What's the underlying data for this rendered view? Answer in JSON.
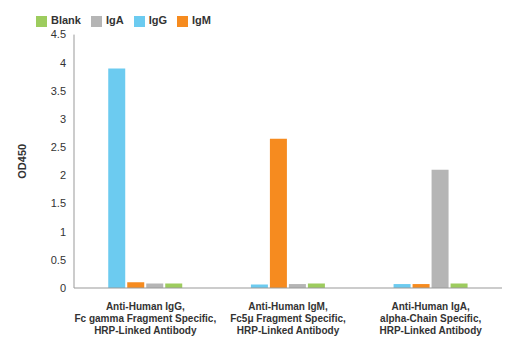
{
  "chart_data": {
    "type": "bar",
    "categories": [
      "Anti-Human IgG,\nFc gamma Fragment Specific,\nHRP-Linked Antibody",
      "Anti-Human IgM,\nFc5μ Fragment Specific,\nHRP-Linked Antibody",
      "Anti-Human IgA,\nalpha-Chain Specific,\nHRP-Linked Antibody"
    ],
    "series": [
      {
        "name": "IgG",
        "color": "#6ccbf0",
        "values": [
          3.9,
          0.06,
          0.07
        ]
      },
      {
        "name": "IgM",
        "color": "#f68b1f",
        "values": [
          0.1,
          2.65,
          0.07
        ]
      },
      {
        "name": "IgA",
        "color": "#b5b5b5",
        "values": [
          0.08,
          0.07,
          2.1
        ]
      },
      {
        "name": "Blank",
        "color": "#9dcc5e",
        "values": [
          0.08,
          0.08,
          0.08
        ]
      }
    ],
    "y_label": "OD450",
    "ylim": [
      0,
      4.5
    ],
    "yticks": [
      0,
      0.5,
      1,
      1.5,
      2,
      2.5,
      3,
      3.5,
      4,
      4.5
    ],
    "grid": false,
    "legend": "top-left"
  }
}
